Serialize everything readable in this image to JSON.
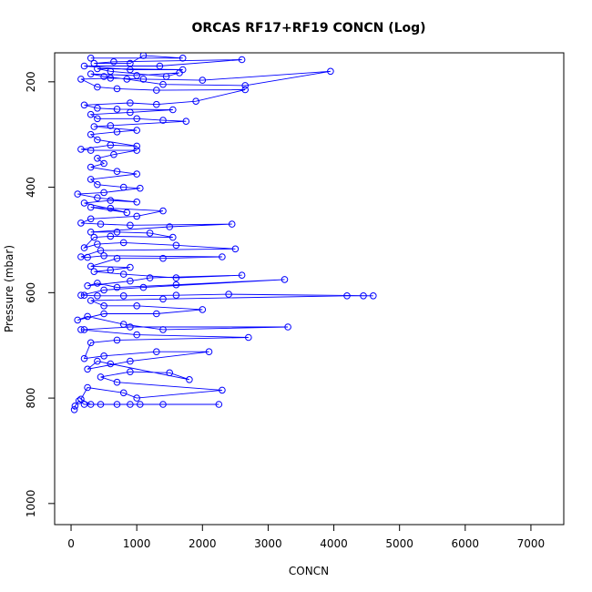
{
  "chart_data": {
    "type": "line",
    "title": "ORCAS RF17+RF19 CONCN (Log)",
    "xlabel": "CONCN",
    "ylabel": "Pressure (mbar)",
    "xlim": [
      -250,
      7500
    ],
    "ylim": [
      1040,
      145
    ],
    "y_inverted": true,
    "x_ticks": [
      0,
      1000,
      2000,
      3000,
      4000,
      5000,
      6000,
      7000
    ],
    "y_ticks": [
      200,
      400,
      600,
      800,
      1000
    ],
    "series_color": "#0000ff",
    "marker": "open-circle",
    "points": [
      [
        50,
        822
      ],
      [
        60,
        815
      ],
      [
        120,
        805
      ],
      [
        200,
        812
      ],
      [
        450,
        812
      ],
      [
        900,
        812
      ],
      [
        1050,
        812
      ],
      [
        1400,
        812
      ],
      [
        2250,
        812
      ],
      [
        700,
        812
      ],
      [
        300,
        812
      ],
      [
        150,
        802
      ],
      [
        250,
        780
      ],
      [
        800,
        790
      ],
      [
        1000,
        800
      ],
      [
        2300,
        785
      ],
      [
        700,
        770
      ],
      [
        450,
        760
      ],
      [
        900,
        750
      ],
      [
        1500,
        752
      ],
      [
        1800,
        765
      ],
      [
        600,
        735
      ],
      [
        400,
        730
      ],
      [
        250,
        745
      ],
      [
        900,
        730
      ],
      [
        2100,
        712
      ],
      [
        1300,
        712
      ],
      [
        500,
        720
      ],
      [
        200,
        725
      ],
      [
        300,
        695
      ],
      [
        700,
        690
      ],
      [
        2700,
        685
      ],
      [
        1000,
        680
      ],
      [
        150,
        670
      ],
      [
        200,
        670
      ],
      [
        900,
        665
      ],
      [
        3300,
        665
      ],
      [
        1400,
        670
      ],
      [
        800,
        660
      ],
      [
        250,
        645
      ],
      [
        100,
        652
      ],
      [
        500,
        640
      ],
      [
        1300,
        640
      ],
      [
        2000,
        632
      ],
      [
        1000,
        625
      ],
      [
        500,
        625
      ],
      [
        300,
        615
      ],
      [
        1400,
        612
      ],
      [
        4200,
        606
      ],
      [
        4450,
        606
      ],
      [
        4600,
        606
      ],
      [
        2400,
        603
      ],
      [
        1600,
        605
      ],
      [
        800,
        606
      ],
      [
        400,
        606
      ],
      [
        200,
        605
      ],
      [
        150,
        605
      ],
      [
        500,
        595
      ],
      [
        1100,
        590
      ],
      [
        3250,
        575
      ],
      [
        1600,
        585
      ],
      [
        700,
        590
      ],
      [
        400,
        582
      ],
      [
        250,
        587
      ],
      [
        900,
        578
      ],
      [
        1200,
        572
      ],
      [
        2600,
        567
      ],
      [
        1600,
        572
      ],
      [
        800,
        565
      ],
      [
        350,
        560
      ],
      [
        600,
        557
      ],
      [
        900,
        552
      ],
      [
        300,
        550
      ],
      [
        700,
        535
      ],
      [
        1400,
        535
      ],
      [
        2300,
        532
      ],
      [
        500,
        530
      ],
      [
        250,
        533
      ],
      [
        150,
        532
      ],
      [
        450,
        520
      ],
      [
        2500,
        517
      ],
      [
        1600,
        510
      ],
      [
        800,
        505
      ],
      [
        400,
        508
      ],
      [
        200,
        515
      ],
      [
        350,
        495
      ],
      [
        600,
        493
      ],
      [
        1550,
        495
      ],
      [
        1200,
        487
      ],
      [
        700,
        485
      ],
      [
        300,
        485
      ],
      [
        1500,
        475
      ],
      [
        2450,
        470
      ],
      [
        900,
        472
      ],
      [
        450,
        470
      ],
      [
        150,
        468
      ],
      [
        300,
        460
      ],
      [
        1000,
        455
      ],
      [
        1400,
        445
      ],
      [
        600,
        440
      ],
      [
        300,
        438
      ],
      [
        850,
        448
      ],
      [
        200,
        430
      ],
      [
        600,
        425
      ],
      [
        1000,
        428
      ],
      [
        400,
        420
      ],
      [
        100,
        413
      ],
      [
        500,
        410
      ],
      [
        1050,
        402
      ],
      [
        800,
        400
      ],
      [
        400,
        395
      ],
      [
        300,
        385
      ],
      [
        1000,
        375
      ],
      [
        700,
        370
      ],
      [
        300,
        362
      ],
      [
        500,
        355
      ],
      [
        400,
        345
      ],
      [
        650,
        338
      ],
      [
        1000,
        330
      ],
      [
        300,
        330
      ],
      [
        150,
        328
      ],
      [
        600,
        320
      ],
      [
        1000,
        322
      ],
      [
        400,
        310
      ],
      [
        300,
        300
      ],
      [
        700,
        295
      ],
      [
        1000,
        292
      ],
      [
        350,
        285
      ],
      [
        600,
        283
      ],
      [
        1750,
        275
      ],
      [
        1400,
        273
      ],
      [
        1000,
        270
      ],
      [
        400,
        270
      ],
      [
        300,
        262
      ],
      [
        900,
        258
      ],
      [
        1550,
        253
      ],
      [
        700,
        252
      ],
      [
        400,
        250
      ],
      [
        200,
        244
      ],
      [
        900,
        240
      ],
      [
        1300,
        243
      ],
      [
        1900,
        237
      ],
      [
        2650,
        215
      ],
      [
        1300,
        216
      ],
      [
        700,
        213
      ],
      [
        400,
        210
      ],
      [
        150,
        195
      ],
      [
        600,
        193
      ],
      [
        1100,
        195
      ],
      [
        2000,
        197
      ],
      [
        3950,
        180
      ],
      [
        2650,
        207
      ],
      [
        1400,
        205
      ],
      [
        850,
        195
      ],
      [
        500,
        190
      ],
      [
        300,
        185
      ],
      [
        1000,
        188
      ],
      [
        1650,
        183
      ],
      [
        1450,
        190
      ],
      [
        600,
        180
      ],
      [
        400,
        175
      ],
      [
        1700,
        177
      ],
      [
        900,
        177
      ],
      [
        200,
        170
      ],
      [
        1350,
        170
      ],
      [
        2600,
        158
      ],
      [
        650,
        162
      ],
      [
        350,
        165
      ],
      [
        900,
        165
      ],
      [
        1100,
        150
      ],
      [
        1700,
        155
      ],
      [
        300,
        155
      ]
    ]
  }
}
